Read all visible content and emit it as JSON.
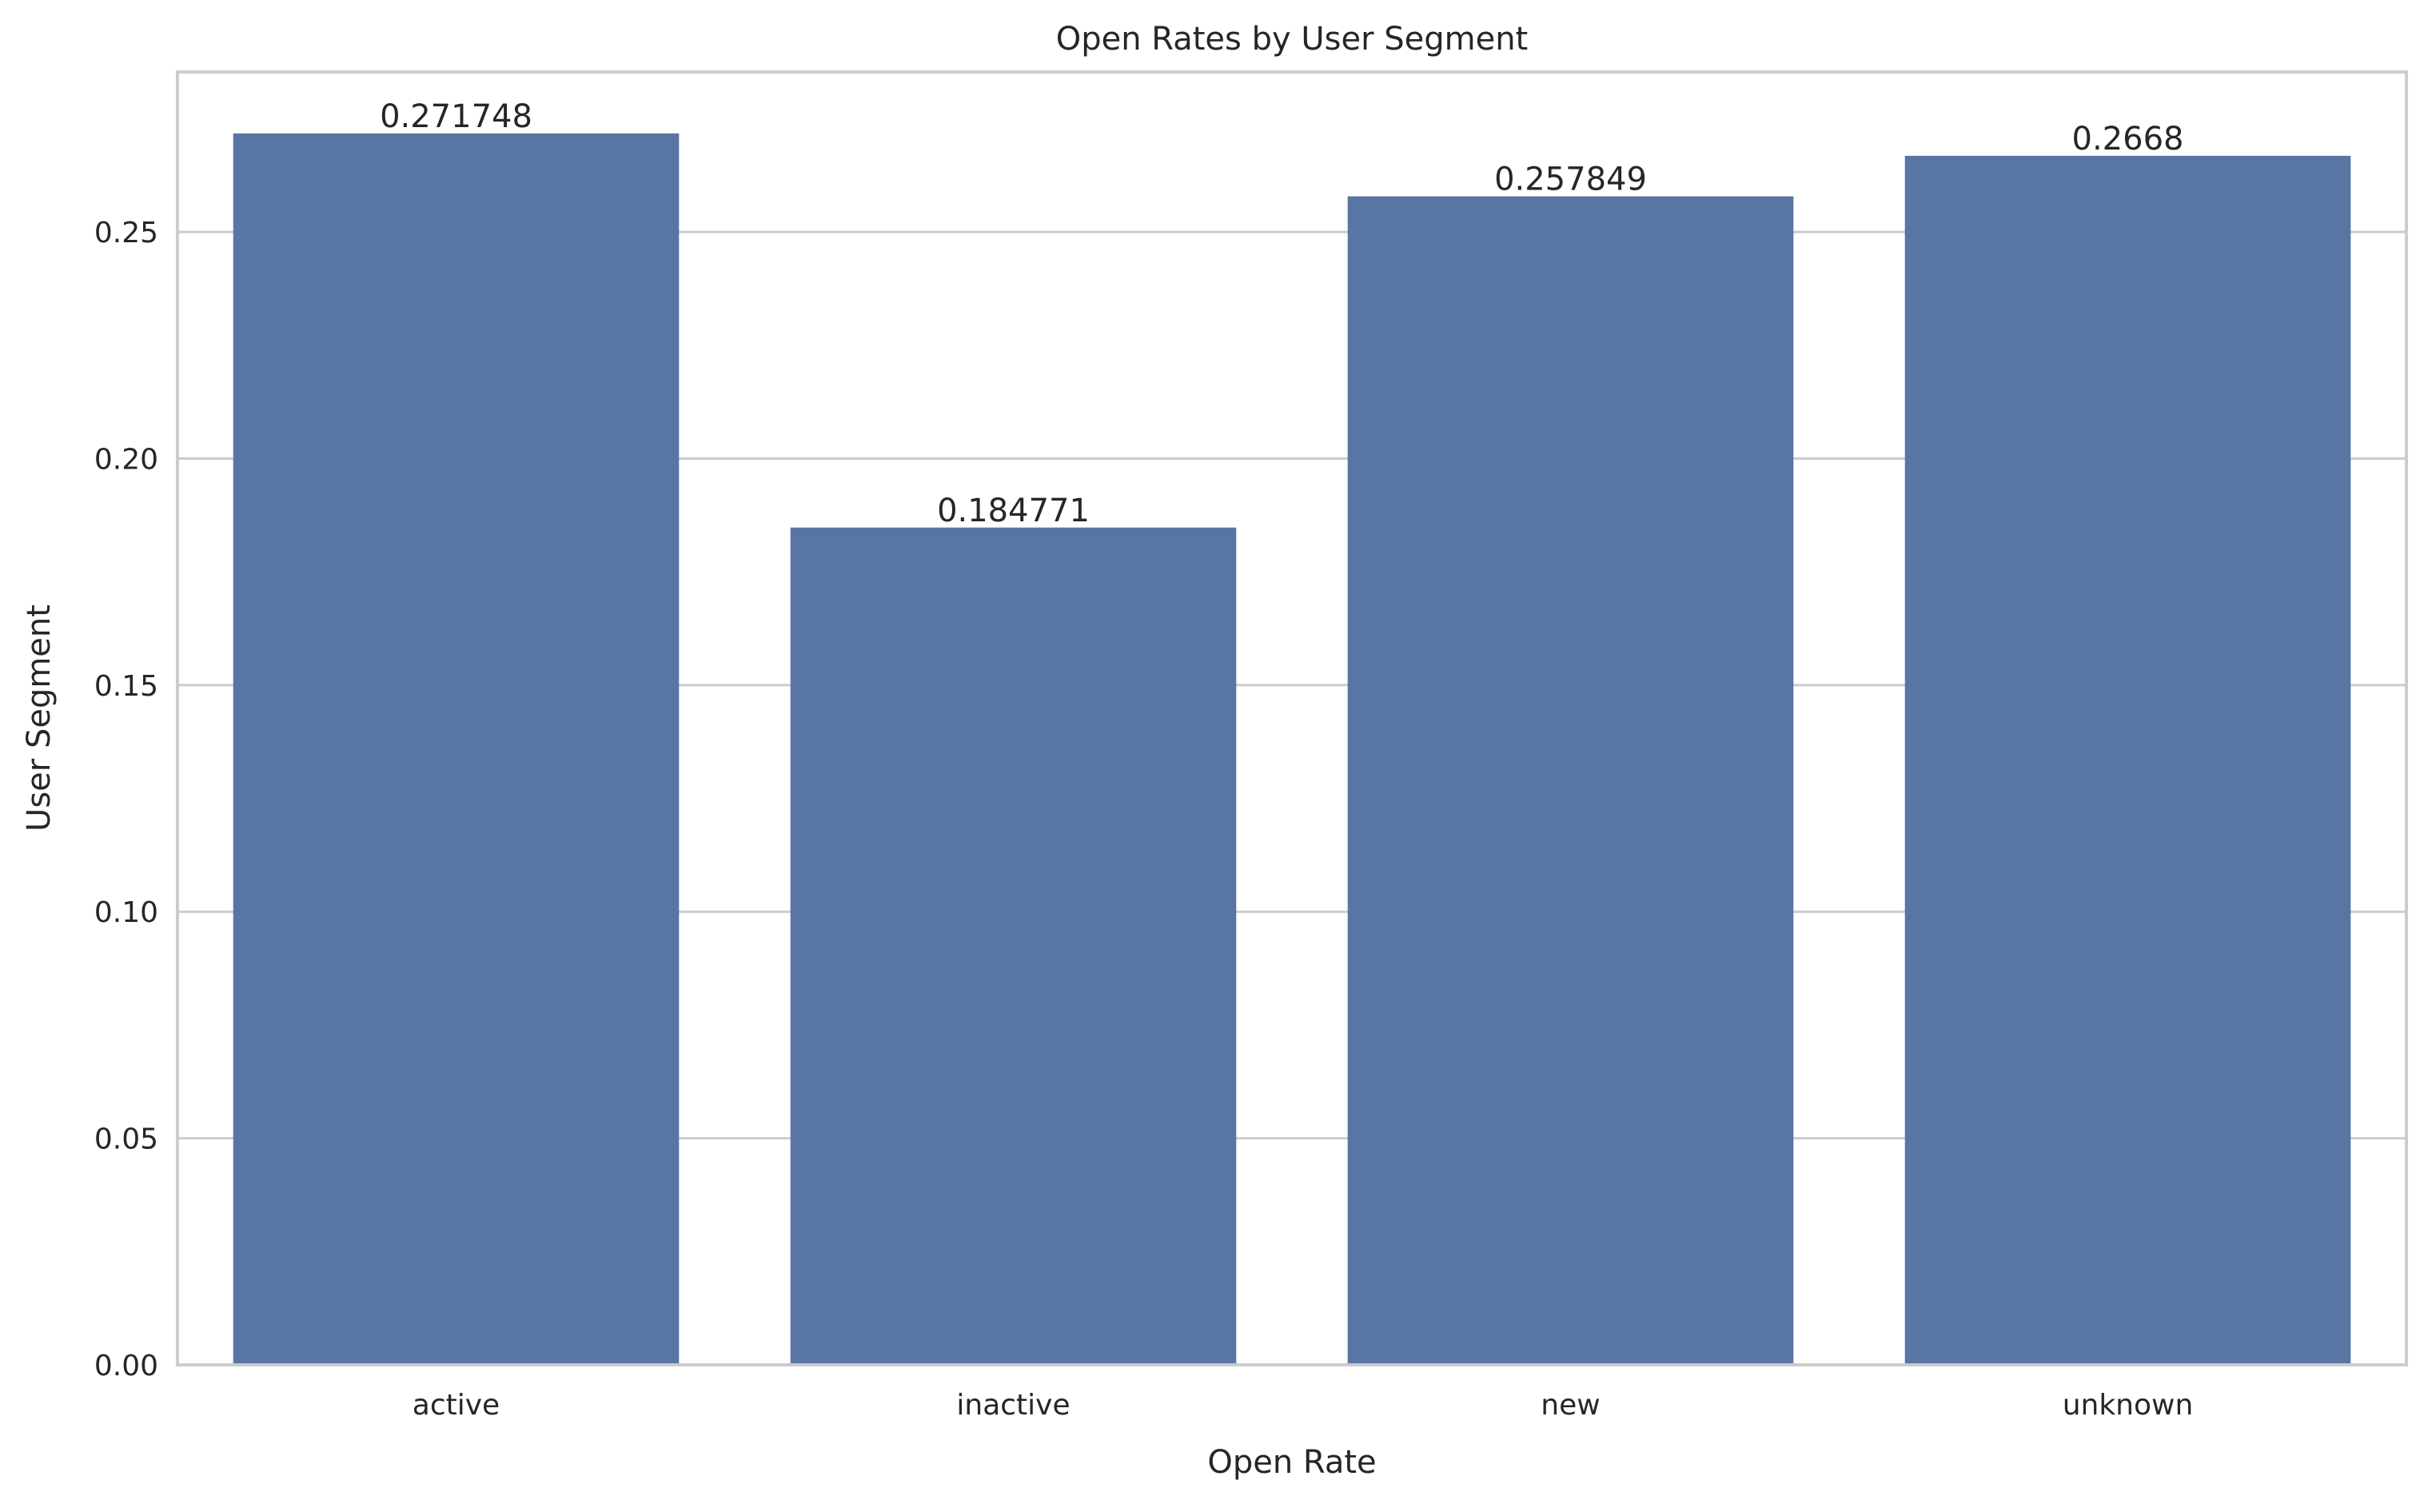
{
  "chart_data": {
    "type": "bar",
    "title": "Open Rates by User Segment",
    "xlabel": "Open Rate",
    "ylabel": "User Segment",
    "categories": [
      "active",
      "inactive",
      "new",
      "unknown"
    ],
    "values": [
      0.271748,
      0.184771,
      0.257849,
      0.2668
    ],
    "value_labels": [
      "0.271748",
      "0.184771",
      "0.257849",
      "0.2668"
    ],
    "ylim": [
      0,
      0.2853
    ],
    "yticks": [
      0.0,
      0.05,
      0.1,
      0.15,
      0.2,
      0.25
    ],
    "ytick_labels": [
      "0.00",
      "0.05",
      "0.10",
      "0.15",
      "0.20",
      "0.25"
    ],
    "grid": true,
    "bar_color": "#5975a4",
    "grid_color": "#cccccc",
    "frame_color": "#cccccc"
  }
}
